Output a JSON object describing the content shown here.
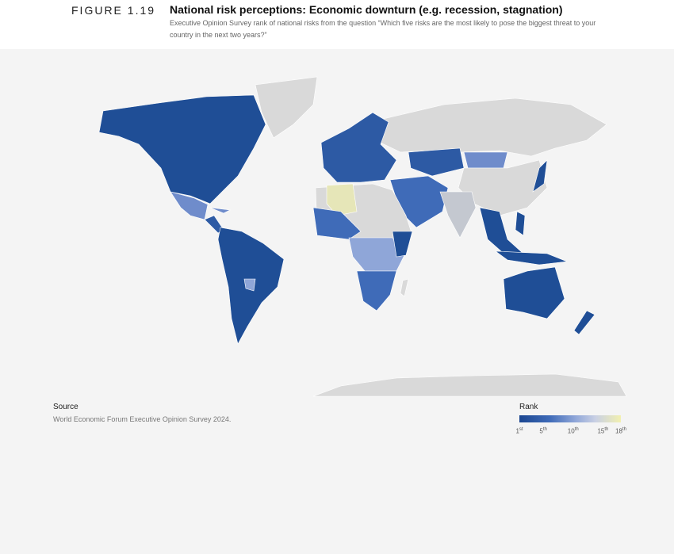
{
  "header": {
    "figure": "FIGURE 1.19",
    "title": "National risk perceptions: Economic downturn (e.g. recession, stagnation)",
    "subtitle": "Executive Opinion Survey rank of national risks from the question “Which five risks are the most likely to pose the biggest threat to your country in the next two years?”"
  },
  "source": {
    "heading": "Source",
    "text": "World Economic Forum Executive Opinion Survey 2024."
  },
  "legend": {
    "title": "Rank",
    "ticks": [
      {
        "value": 1,
        "suffix": "st"
      },
      {
        "value": 5,
        "suffix": "th"
      },
      {
        "value": 10,
        "suffix": "th"
      },
      {
        "value": 15,
        "suffix": "th"
      },
      {
        "value": 18,
        "suffix": "th"
      }
    ]
  }
}
